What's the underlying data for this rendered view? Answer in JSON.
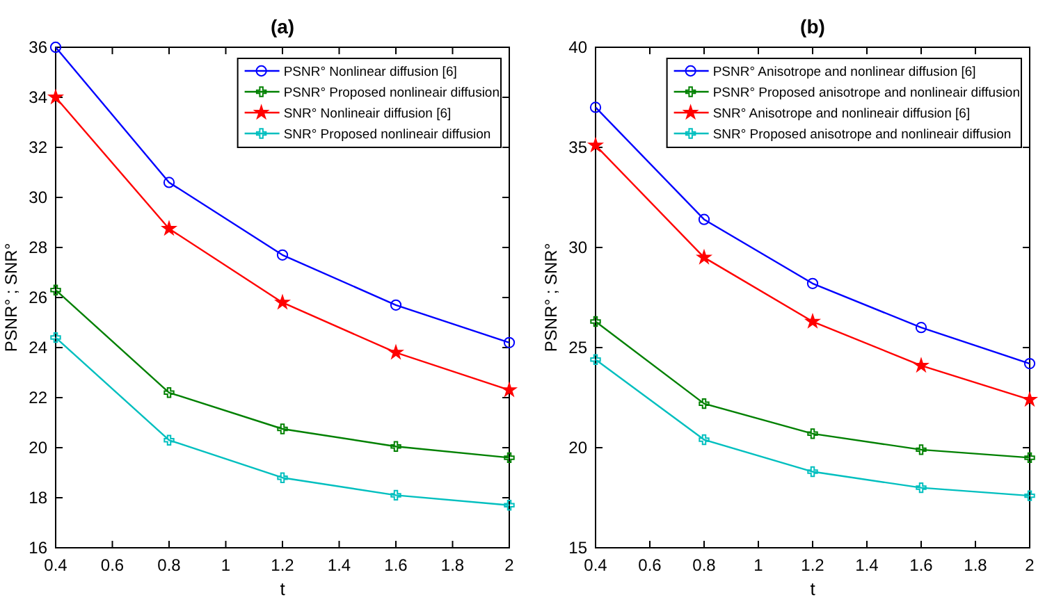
{
  "chart_data": [
    {
      "type": "line",
      "title": "(a)",
      "xlabel": "t",
      "ylabel": "PSNR° ; SNR°",
      "x": [
        0.4,
        0.8,
        1.2,
        1.6,
        2
      ],
      "xlim": [
        0.4,
        2
      ],
      "xticks": [
        0.4,
        0.6,
        0.8,
        1,
        1.2,
        1.4,
        1.6,
        1.8,
        2
      ],
      "ylim": [
        16,
        36
      ],
      "yticks": [
        16,
        18,
        20,
        22,
        24,
        26,
        28,
        30,
        32,
        34,
        36
      ],
      "grid": false,
      "legend": "top right",
      "series": [
        {
          "name": "PSNR° Nonlinear diffusion [6]",
          "color": "#0000ff",
          "marker": "circle",
          "values": [
            36,
            30.6,
            27.7,
            25.7,
            24.2
          ]
        },
        {
          "name": "PSNR° Proposed nonlineair diffusion",
          "color": "#008000",
          "marker": "cross",
          "values": [
            26.3,
            22.2,
            20.75,
            20.05,
            19.6
          ]
        },
        {
          "name": "SNR° Nonlineair diffusion [6]",
          "color": "#ff0000",
          "marker": "star",
          "values": [
            34,
            28.75,
            25.8,
            23.8,
            22.3
          ]
        },
        {
          "name": "SNR° Proposed nonlineair diffusion",
          "color": "#00bfbf",
          "marker": "cross",
          "values": [
            24.4,
            20.3,
            18.8,
            18.1,
            17.7
          ]
        }
      ]
    },
    {
      "type": "line",
      "title": "(b)",
      "xlabel": "t",
      "ylabel": "PSNR° ; SNR°",
      "x": [
        0.4,
        0.8,
        1.2,
        1.6,
        2
      ],
      "xlim": [
        0.4,
        2
      ],
      "xticks": [
        0.4,
        0.6,
        0.8,
        1,
        1.2,
        1.4,
        1.6,
        1.8,
        2
      ],
      "ylim": [
        15,
        40
      ],
      "yticks": [
        15,
        20,
        25,
        30,
        35,
        40
      ],
      "grid": false,
      "legend": "top right",
      "series": [
        {
          "name": "PSNR° Anisotrope and nonlinear diffusion [6]",
          "color": "#0000ff",
          "marker": "circle",
          "values": [
            37,
            31.4,
            28.2,
            26,
            24.2
          ]
        },
        {
          "name": "PSNR° Proposed anisotrope and nonlineair diffusion",
          "color": "#008000",
          "marker": "cross",
          "values": [
            26.3,
            22.2,
            20.7,
            19.9,
            19.5
          ]
        },
        {
          "name": "SNR° Anisotrope and nonlineair diffusion [6]",
          "color": "#ff0000",
          "marker": "star",
          "values": [
            35.1,
            29.5,
            26.3,
            24.1,
            22.4
          ]
        },
        {
          "name": "SNR° Proposed anisotrope and nonlineair diffusion",
          "color": "#00bfbf",
          "marker": "cross",
          "values": [
            24.4,
            20.4,
            18.8,
            18,
            17.6
          ]
        }
      ]
    }
  ]
}
